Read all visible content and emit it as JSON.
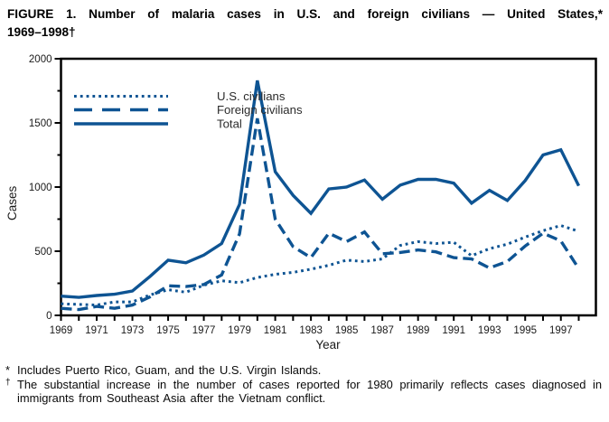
{
  "figure": {
    "title_line1": "FIGURE 1. Number of malaria cases in U.S. and foreign civilians — United States,*",
    "title_line2": "1969–1998†"
  },
  "footnotes": [
    {
      "marker": "*",
      "text": "Includes Puerto Rico, Guam, and the U.S. Virgin Islands."
    },
    {
      "marker": "†",
      "text": "The substantial increase in the number of cases reported for 1980 primarily reflects cases diagnosed in immigrants from Southeast Asia after the Vietnam conflict."
    }
  ],
  "chart_data": {
    "type": "line",
    "title": "Number of malaria cases in U.S. and foreign civilians — United States, 1969–1998",
    "xlabel": "Year",
    "ylabel": "Cases",
    "xlim": [
      1969,
      1998
    ],
    "ylim": [
      0,
      2000
    ],
    "y_major_ticks": [
      0,
      500,
      1000,
      1500,
      2000
    ],
    "y_minor_ticks": [
      250,
      750,
      1250,
      1750
    ],
    "x_tick_years_step": 1,
    "x_label_years": [
      1969,
      1971,
      1973,
      1975,
      1977,
      1979,
      1981,
      1983,
      1985,
      1987,
      1989,
      1991,
      1993,
      1995,
      1997
    ],
    "grid": "off",
    "line_color": "#0e5493",
    "legend_position": "top-left-inside",
    "x": [
      1969,
      1970,
      1971,
      1972,
      1973,
      1974,
      1975,
      1976,
      1977,
      1978,
      1979,
      1980,
      1981,
      1982,
      1983,
      1984,
      1985,
      1986,
      1987,
      1988,
      1989,
      1990,
      1991,
      1992,
      1993,
      1994,
      1995,
      1996,
      1997,
      1998
    ],
    "series": [
      {
        "name": "U.S. civilians",
        "style": "dotted",
        "values": [
          90,
          85,
          80,
          105,
          105,
          160,
          200,
          180,
          235,
          270,
          255,
          295,
          320,
          335,
          360,
          390,
          430,
          420,
          440,
          545,
          575,
          560,
          570,
          465,
          520,
          555,
          610,
          660,
          700,
          655
        ]
      },
      {
        "name": "Foreign civilians",
        "style": "dashed",
        "values": [
          55,
          45,
          70,
          55,
          80,
          145,
          230,
          225,
          240,
          315,
          635,
          1535,
          750,
          535,
          450,
          640,
          575,
          650,
          480,
          490,
          510,
          495,
          450,
          440,
          370,
          420,
          540,
          640,
          580,
          365
        ]
      },
      {
        "name": "Total",
        "style": "solid",
        "values": [
          150,
          140,
          155,
          165,
          190,
          305,
          430,
          410,
          470,
          560,
          865,
          1830,
          1120,
          935,
          795,
          985,
          1000,
          1055,
          905,
          1015,
          1060,
          1060,
          1030,
          875,
          975,
          895,
          1050,
          1250,
          1290,
          1010
        ]
      }
    ]
  }
}
